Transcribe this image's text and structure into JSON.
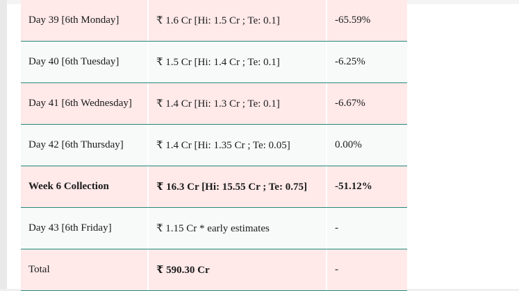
{
  "table": {
    "rows": [
      {
        "day": "Day 39 [6th Monday]",
        "collection": "₹ 1.6 Cr [Hi: 1.5 Cr ; Te: 0.1]",
        "change": "-65.59%",
        "style": "pink"
      },
      {
        "day": "Day 40 [6th Tuesday]",
        "collection": "₹ 1.5 Cr [Hi: 1.4 Cr ; Te: 0.1]",
        "change": "-6.25%",
        "style": "white"
      },
      {
        "day": "Day 41 [6th Wednesday]",
        "collection": "₹ 1.4 Cr [Hi: 1.3 Cr ; Te: 0.1]",
        "change": "-6.67%",
        "style": "pink"
      },
      {
        "day": "Day 42 [6th Thursday]",
        "collection": "₹ 1.4 Cr [Hi: 1.35 Cr ; Te: 0.05]",
        "change": "0.00%",
        "style": "white"
      },
      {
        "day": "Week 6 Collection",
        "collection": "₹ 16.3 Cr [Hi: 15.55 Cr ; Te: 0.75]",
        "change": "-51.12%",
        "style": "pink",
        "bold": true
      },
      {
        "day": "Day 43 [6th Friday]",
        "collection": "₹ 1.15 Cr * early estimates",
        "change": "-",
        "style": "white"
      },
      {
        "day": "Total",
        "collection": "₹ 590.30 Cr",
        "change": "-",
        "style": "pink",
        "boldCollection": true
      }
    ]
  },
  "colors": {
    "pink_row": "#ffe9e9",
    "white_row": "#f8f9f9",
    "row_border": "#1f8a7a"
  }
}
